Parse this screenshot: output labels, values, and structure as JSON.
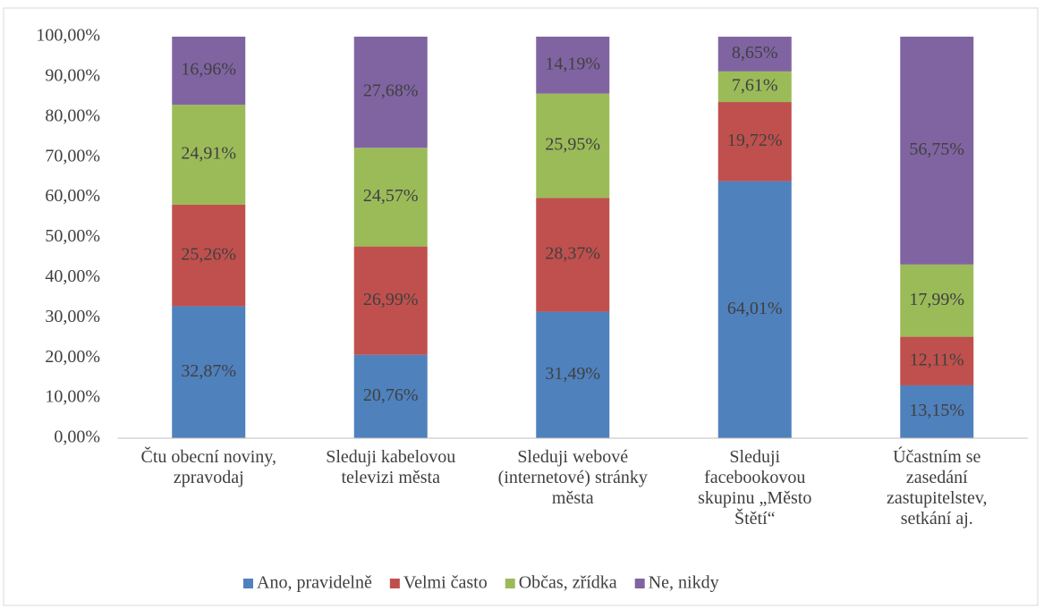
{
  "chart_data": {
    "type": "stacked_bar",
    "categories": [
      "Čtu obecní noviny, zpravodaj",
      "Sleduji kabelovou televizi města",
      "Sleduji webové (internetové) stránky města",
      "Sleduji facebookovou skupinu „Město Štětí“",
      "Účastním se zasedání zastupitelstev, setkání aj."
    ],
    "series": [
      {
        "name": "Ano, pravidelně",
        "color": "#4f81bd",
        "values": [
          32.87,
          20.76,
          31.49,
          64.01,
          13.15
        ],
        "value_labels": [
          "32,87%",
          "20,76%",
          "31,49%",
          "64,01%",
          "13,15%"
        ]
      },
      {
        "name": "Velmi často",
        "color": "#c0504d",
        "values": [
          25.26,
          26.99,
          28.37,
          19.72,
          12.11
        ],
        "value_labels": [
          "25,26%",
          "26,99%",
          "28,37%",
          "19,72%",
          "12,11%"
        ]
      },
      {
        "name": "Občas, zřídka",
        "color": "#9bbb59",
        "values": [
          24.91,
          24.57,
          25.95,
          7.61,
          17.99
        ],
        "value_labels": [
          "24,91%",
          "24,57%",
          "25,95%",
          "7,61%",
          "17,99%"
        ]
      },
      {
        "name": "Ne, nikdy",
        "color": "#8064a2",
        "values": [
          16.96,
          27.68,
          14.19,
          8.65,
          56.75
        ],
        "value_labels": [
          "16,96%",
          "27,68%",
          "14,19%",
          "8,65%",
          "56,75%"
        ]
      }
    ],
    "ylim": [
      0,
      100
    ],
    "yticks": [
      {
        "value": 0,
        "label": "0,00%"
      },
      {
        "value": 10,
        "label": "10,00%"
      },
      {
        "value": 20,
        "label": "20,00%"
      },
      {
        "value": 30,
        "label": "30,00%"
      },
      {
        "value": 40,
        "label": "40,00%"
      },
      {
        "value": 50,
        "label": "50,00%"
      },
      {
        "value": 60,
        "label": "60,00%"
      },
      {
        "value": 70,
        "label": "70,00%"
      },
      {
        "value": 80,
        "label": "80,00%"
      },
      {
        "value": 90,
        "label": "90,00%"
      },
      {
        "value": 100,
        "label": "100,00%"
      }
    ],
    "grid": false,
    "legend": "bottom"
  }
}
